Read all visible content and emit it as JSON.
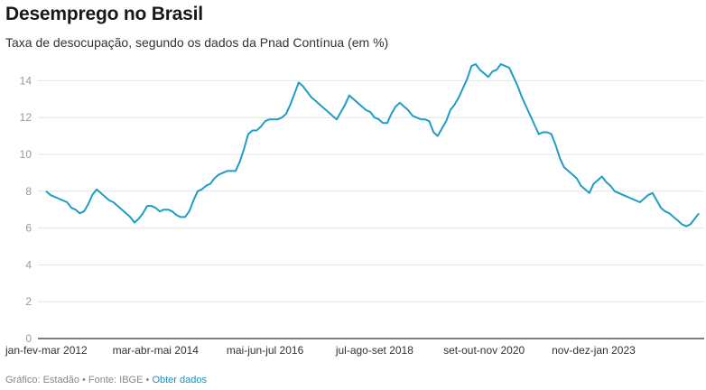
{
  "header": {
    "title": "Desemprego no Brasil",
    "subtitle": "Taxa de desocupação, segundo os dados da Pnad Contínua (em %)"
  },
  "footer": {
    "credit": "Gráfico: Estadão",
    "separator": "•",
    "source": "Fonte: IBGE",
    "link_label": "Obter dados"
  },
  "colors": {
    "line": "#1f9dc6",
    "grid": "#e3e3e3",
    "axis": "#333333",
    "link": "#1a8fc4"
  },
  "chart_data": {
    "type": "line",
    "title": "Desemprego no Brasil",
    "subtitle": "Taxa de desocupação, segundo os dados da Pnad Contínua (em %)",
    "xlabel": "",
    "ylabel": "",
    "ylim": [
      0,
      15
    ],
    "yticks": [
      0,
      2,
      4,
      6,
      8,
      10,
      12,
      14
    ],
    "grid": true,
    "legend": "none",
    "x_start": "jan-fev-mar 2012",
    "x_step": "month (moving quarter)",
    "xtick_labels": [
      {
        "label": "jan-fev-mar 2012",
        "index": 0
      },
      {
        "label": "mar-abr-mai 2014",
        "index": 26
      },
      {
        "label": "mai-jun-jul 2016",
        "index": 52
      },
      {
        "label": "jul-ago-set 2018",
        "index": 78
      },
      {
        "label": "set-out-nov 2020",
        "index": 104
      },
      {
        "label": "nov-dez-jan 2023",
        "index": 130
      }
    ],
    "series": [
      {
        "name": "Taxa de desocupação (%)",
        "values": [
          8.0,
          7.8,
          7.7,
          7.6,
          7.5,
          7.4,
          7.1,
          7.0,
          6.8,
          6.9,
          7.3,
          7.8,
          8.1,
          7.9,
          7.7,
          7.5,
          7.4,
          7.2,
          7.0,
          6.8,
          6.6,
          6.3,
          6.5,
          6.8,
          7.2,
          7.2,
          7.1,
          6.9,
          7.0,
          7.0,
          6.9,
          6.7,
          6.6,
          6.6,
          6.9,
          7.5,
          8.0,
          8.1,
          8.3,
          8.4,
          8.7,
          8.9,
          9.0,
          9.1,
          9.1,
          9.1,
          9.6,
          10.3,
          11.1,
          11.3,
          11.3,
          11.5,
          11.8,
          11.9,
          11.9,
          11.9,
          12.0,
          12.2,
          12.7,
          13.3,
          13.9,
          13.7,
          13.4,
          13.1,
          12.9,
          12.7,
          12.5,
          12.3,
          12.1,
          11.9,
          12.3,
          12.7,
          13.2,
          13.0,
          12.8,
          12.6,
          12.4,
          12.3,
          12.0,
          11.9,
          11.7,
          11.7,
          12.2,
          12.6,
          12.8,
          12.6,
          12.4,
          12.1,
          12.0,
          11.9,
          11.9,
          11.8,
          11.2,
          11.0,
          11.4,
          11.8,
          12.4,
          12.7,
          13.1,
          13.6,
          14.1,
          14.8,
          14.9,
          14.6,
          14.4,
          14.2,
          14.5,
          14.6,
          14.9,
          14.8,
          14.7,
          14.2,
          13.7,
          13.1,
          12.6,
          12.1,
          11.6,
          11.1,
          11.2,
          11.2,
          11.1,
          10.5,
          9.8,
          9.3,
          9.1,
          8.9,
          8.7,
          8.3,
          8.1,
          7.9,
          8.4,
          8.6,
          8.8,
          8.5,
          8.3,
          8.0,
          7.9,
          7.8,
          7.7,
          7.6,
          7.5,
          7.4,
          7.6,
          7.8,
          7.9,
          7.5,
          7.1,
          6.9,
          6.8,
          6.6,
          6.4,
          6.2,
          6.1,
          6.2,
          6.5,
          6.8
        ]
      }
    ]
  }
}
